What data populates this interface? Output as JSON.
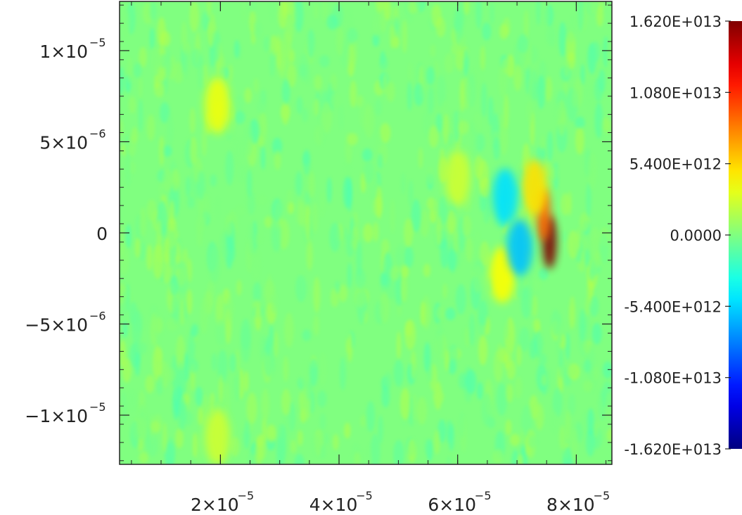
{
  "chart_data": {
    "type": "heatmap",
    "title": "",
    "xlabel": "",
    "ylabel": "",
    "xlim": [
      3e-06,
      8.6e-05
    ],
    "ylim": [
      -1.27e-05,
      1.27e-05
    ],
    "background_value": 0,
    "x_tick_labels": [
      {
        "value": 2e-05,
        "mantissa": "2×10",
        "exponent": "−5"
      },
      {
        "value": 4e-05,
        "mantissa": "4×10",
        "exponent": "−5"
      },
      {
        "value": 6e-05,
        "mantissa": "6×10",
        "exponent": "−5"
      },
      {
        "value": 8e-05,
        "mantissa": "8×10",
        "exponent": "−5"
      }
    ],
    "y_tick_labels": [
      {
        "value": 1e-05,
        "mantissa": "1×10",
        "exponent": "−5"
      },
      {
        "value": 5e-06,
        "mantissa": "5×10",
        "exponent": "−6"
      },
      {
        "value": 0,
        "mantissa": "0",
        "exponent": ""
      },
      {
        "value": -5e-06,
        "mantissa": "−5×10",
        "exponent": "−6"
      },
      {
        "value": -1e-05,
        "mantissa": "−1×10",
        "exponent": "−5"
      }
    ],
    "colorbar": {
      "range": [
        -16200000000000.0,
        16200000000000.0
      ],
      "colormap": "jet",
      "tick_labels": [
        {
          "value": 16200000000000.0,
          "label": "1.620E+013"
        },
        {
          "value": 10800000000000.0,
          "label": "1.080E+013"
        },
        {
          "value": 5400000000000.0,
          "label": "5.400E+012"
        },
        {
          "value": 0,
          "label": "0.0000"
        },
        {
          "value": -5400000000000.0,
          "label": "-5.400E+012"
        },
        {
          "value": -10800000000000.0,
          "label": "-1.080E+013"
        },
        {
          "value": -16200000000000.0,
          "label": "-1.620E+013"
        }
      ]
    },
    "features": [
      {
        "kind": "positive-peak",
        "x": 7.55e-05,
        "y": -5e-07,
        "value": 16200000000000.0
      },
      {
        "kind": "positive-lobe",
        "x": 7.45e-05,
        "y": 1e-06,
        "value": 9000000000000.0
      },
      {
        "kind": "positive-lobe",
        "x": 7.3e-05,
        "y": 2.5e-06,
        "value": 5000000000000.0
      },
      {
        "kind": "positive-lobe",
        "x": 6.75e-05,
        "y": -2.3e-06,
        "value": 4000000000000.0
      },
      {
        "kind": "negative-lobe",
        "x": 7.05e-05,
        "y": -8e-07,
        "value": -6000000000000.0
      },
      {
        "kind": "negative-lobe",
        "x": 6.8e-05,
        "y": 2e-06,
        "value": -5000000000000.0
      },
      {
        "kind": "positive-lobe",
        "x": 1.95e-05,
        "y": 7e-06,
        "value": 3500000000000.0
      },
      {
        "kind": "positive-lobe",
        "x": 6e-05,
        "y": 3e-06,
        "value": 2500000000000.0
      },
      {
        "kind": "positive-lobe",
        "x": 1.95e-05,
        "y": -1.12e-05,
        "value": 2500000000000.0
      }
    ]
  }
}
